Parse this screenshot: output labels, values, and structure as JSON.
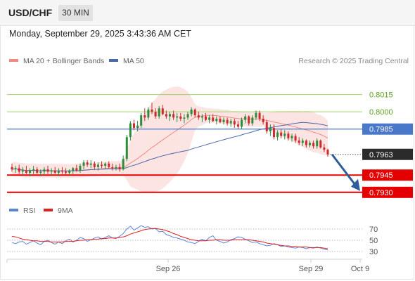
{
  "header": {
    "symbol": "USD/CHF",
    "timeframe": "30 MIN",
    "datetime": "Monday, September 29, 2025 3:43:36 AM CET"
  },
  "legend": {
    "ma20_label": "MA 20 + Bollinger Bands",
    "ma50_label": "MA 50",
    "credit": "Research © 2025 Trading Central",
    "rsi_label": "RSI",
    "rsi_ma_label": "9MA"
  },
  "colors": {
    "up": "#2e8b3a",
    "down": "#cc2b2b",
    "ma20": "#f08a80",
    "bollinger_fill": "#fce1df",
    "ma50": "#4a68a8",
    "pivot_line": "#4a78c8",
    "support_line": "#e50000",
    "resistance_line": "#9ed36a",
    "resistance_text": "#5aa020",
    "rsi": "#5b86d8",
    "rsi_ma": "#e02020",
    "arrow": "#2f5c9a",
    "last_price_tag": "#2b2b2b"
  },
  "chart_data": [
    {
      "type": "candlestick",
      "symbol": "USD/CHF",
      "timeframe": "30 MIN",
      "ylim": [
        0.7925,
        0.803
      ],
      "x_ticks": [
        "Sep 26",
        "Sep 29",
        "Oct 9"
      ],
      "candles": [
        [
          0.7952,
          0.7955,
          0.7948,
          0.795
        ],
        [
          0.795,
          0.7953,
          0.7947,
          0.7951
        ],
        [
          0.7951,
          0.7954,
          0.7946,
          0.7948
        ],
        [
          0.7948,
          0.7952,
          0.7945,
          0.7949
        ],
        [
          0.7949,
          0.7953,
          0.7946,
          0.7947
        ],
        [
          0.7947,
          0.7951,
          0.7944,
          0.7949
        ],
        [
          0.7949,
          0.7953,
          0.7946,
          0.795
        ],
        [
          0.795,
          0.7952,
          0.7946,
          0.7947
        ],
        [
          0.7947,
          0.795,
          0.7944,
          0.7948
        ],
        [
          0.7948,
          0.7952,
          0.7945,
          0.795
        ],
        [
          0.795,
          0.7953,
          0.7946,
          0.7948
        ],
        [
          0.7948,
          0.7951,
          0.7945,
          0.7949
        ],
        [
          0.7949,
          0.7952,
          0.7946,
          0.7947
        ],
        [
          0.7947,
          0.7951,
          0.7944,
          0.7949
        ],
        [
          0.7949,
          0.7952,
          0.7946,
          0.7948
        ],
        [
          0.7948,
          0.7951,
          0.7945,
          0.7947
        ],
        [
          0.7947,
          0.795,
          0.7945,
          0.7949
        ],
        [
          0.7949,
          0.7952,
          0.7946,
          0.7951
        ],
        [
          0.7951,
          0.7954,
          0.7948,
          0.7949
        ],
        [
          0.7949,
          0.7955,
          0.7947,
          0.7953
        ],
        [
          0.7953,
          0.7958,
          0.795,
          0.7956
        ],
        [
          0.7956,
          0.7958,
          0.7952,
          0.7954
        ],
        [
          0.7954,
          0.7958,
          0.7951,
          0.7955
        ],
        [
          0.7955,
          0.7957,
          0.795,
          0.7952
        ],
        [
          0.7952,
          0.7956,
          0.7949,
          0.7954
        ],
        [
          0.7954,
          0.7957,
          0.7951,
          0.7953
        ],
        [
          0.7953,
          0.7956,
          0.795,
          0.7955
        ],
        [
          0.7955,
          0.7957,
          0.7951,
          0.7952
        ],
        [
          0.7952,
          0.7955,
          0.7949,
          0.7951
        ],
        [
          0.7951,
          0.7954,
          0.7949,
          0.7952
        ],
        [
          0.7952,
          0.7955,
          0.7948,
          0.795
        ],
        [
          0.795,
          0.7962,
          0.7949,
          0.7959
        ],
        [
          0.7959,
          0.798,
          0.7957,
          0.7978
        ],
        [
          0.7978,
          0.7992,
          0.7975,
          0.799
        ],
        [
          0.799,
          0.7993,
          0.7984,
          0.7986
        ],
        [
          0.7986,
          0.7992,
          0.7983,
          0.7988
        ],
        [
          0.7988,
          0.7999,
          0.7986,
          0.7997
        ],
        [
          0.7997,
          0.8003,
          0.7992,
          0.7995
        ],
        [
          0.7995,
          0.8004,
          0.7993,
          0.8002
        ],
        [
          0.8002,
          0.8008,
          0.7998,
          0.8
        ],
        [
          0.8,
          0.8003,
          0.7994,
          0.7996
        ],
        [
          0.7996,
          0.8005,
          0.7994,
          0.8003
        ],
        [
          0.8003,
          0.8006,
          0.7997,
          0.7998
        ],
        [
          0.7998,
          0.8001,
          0.7994,
          0.7996
        ],
        [
          0.7996,
          0.8,
          0.7992,
          0.7998
        ],
        [
          0.7998,
          0.8001,
          0.7993,
          0.7995
        ],
        [
          0.7995,
          0.7999,
          0.7991,
          0.7996
        ],
        [
          0.7996,
          0.7999,
          0.7992,
          0.7994
        ],
        [
          0.7994,
          0.7998,
          0.799,
          0.7995
        ],
        [
          0.7995,
          0.8,
          0.7993,
          0.7998
        ],
        [
          0.7998,
          0.8004,
          0.7996,
          0.8002
        ],
        [
          0.8002,
          0.8003,
          0.7995,
          0.7997
        ],
        [
          0.7997,
          0.8,
          0.7993,
          0.7995
        ],
        [
          0.7995,
          0.7998,
          0.7991,
          0.7996
        ],
        [
          0.7996,
          0.7999,
          0.7992,
          0.7993
        ],
        [
          0.7993,
          0.7997,
          0.799,
          0.7995
        ],
        [
          0.7995,
          0.7998,
          0.7991,
          0.7992
        ],
        [
          0.7992,
          0.7996,
          0.7989,
          0.7994
        ],
        [
          0.7994,
          0.7996,
          0.799,
          0.7991
        ],
        [
          0.7991,
          0.7995,
          0.7989,
          0.7993
        ],
        [
          0.7993,
          0.7995,
          0.7988,
          0.799
        ],
        [
          0.799,
          0.7994,
          0.7987,
          0.7992
        ],
        [
          0.7992,
          0.7994,
          0.7986,
          0.7989
        ],
        [
          0.7989,
          0.7992,
          0.7985,
          0.7987
        ],
        [
          0.7987,
          0.7995,
          0.7985,
          0.7993
        ],
        [
          0.7993,
          0.7998,
          0.799,
          0.7996
        ],
        [
          0.7996,
          0.7997,
          0.7988,
          0.799
        ],
        [
          0.799,
          0.7997,
          0.7988,
          0.7995
        ],
        [
          0.7995,
          0.8001,
          0.7993,
          0.7999
        ],
        [
          0.7999,
          0.8001,
          0.7992,
          0.7994
        ],
        [
          0.7994,
          0.7997,
          0.7989,
          0.7991
        ],
        [
          0.7991,
          0.7993,
          0.7981,
          0.7983
        ],
        [
          0.7983,
          0.7989,
          0.7979,
          0.7986
        ],
        [
          0.7986,
          0.7989,
          0.7976,
          0.7978
        ],
        [
          0.7978,
          0.7984,
          0.7975,
          0.7982
        ],
        [
          0.7982,
          0.7985,
          0.7977,
          0.7979
        ],
        [
          0.7979,
          0.7984,
          0.7976,
          0.7981
        ],
        [
          0.7981,
          0.7983,
          0.7975,
          0.7977
        ],
        [
          0.7977,
          0.7981,
          0.7974,
          0.7979
        ],
        [
          0.7979,
          0.7981,
          0.7973,
          0.7975
        ],
        [
          0.7975,
          0.7978,
          0.7971,
          0.7973
        ],
        [
          0.7973,
          0.7977,
          0.797,
          0.7975
        ],
        [
          0.7975,
          0.7976,
          0.7969,
          0.7971
        ],
        [
          0.7971,
          0.7975,
          0.7969,
          0.7973
        ],
        [
          0.7973,
          0.7975,
          0.7968,
          0.797
        ],
        [
          0.797,
          0.7977,
          0.7968,
          0.7975
        ],
        [
          0.7975,
          0.7976,
          0.7968,
          0.7969
        ],
        [
          0.7969,
          0.7972,
          0.7965,
          0.7967
        ],
        [
          0.7967,
          0.7968,
          0.7961,
          0.7963
        ]
      ],
      "overlays": [
        "MA 20 + Bollinger Bands",
        "MA 50"
      ],
      "levels": [
        {
          "label": "0.8015",
          "value": 0.8015,
          "kind": "resistance"
        },
        {
          "label": "0.8000",
          "value": 0.8,
          "kind": "resistance"
        },
        {
          "label": "0.7985",
          "value": 0.7985,
          "kind": "pivot"
        },
        {
          "label": "0.7963",
          "value": 0.7963,
          "kind": "last"
        },
        {
          "label": "0.7945",
          "value": 0.7945,
          "kind": "support"
        },
        {
          "label": "0.7930",
          "value": 0.793,
          "kind": "support"
        }
      ],
      "forecast_arrow": {
        "from": 0.7963,
        "to": 0.793,
        "direction": "down"
      }
    },
    {
      "type": "line",
      "title": "RSI",
      "ylim": [
        25,
        80
      ],
      "y_ticks": [
        "70",
        "50",
        "30"
      ],
      "levels": [
        70,
        50,
        30
      ],
      "series": [
        {
          "name": "RSI",
          "values": [
            46,
            44,
            47,
            48,
            43,
            46,
            49,
            45,
            42,
            48,
            50,
            46,
            43,
            47,
            44,
            49,
            52,
            47,
            50,
            55,
            53,
            48,
            51,
            54,
            56,
            52,
            55,
            58,
            54,
            53,
            57,
            62,
            70,
            75,
            68,
            72,
            76,
            73,
            74,
            70,
            71,
            65,
            66,
            60,
            58,
            55,
            54,
            52,
            50,
            47,
            46,
            44,
            48,
            52,
            49,
            55,
            58,
            50,
            48,
            45,
            47,
            51,
            53,
            56,
            55,
            52,
            49,
            46,
            47,
            44,
            42,
            40,
            41,
            44,
            42,
            39,
            40,
            38,
            37,
            36,
            38,
            37,
            35,
            37,
            36,
            38,
            36,
            34,
            33
          ]
        },
        {
          "name": "9MA",
          "values": [
            57,
            56,
            54,
            52,
            51,
            50,
            49,
            49,
            48,
            48,
            48,
            47,
            47,
            47,
            47,
            48,
            48,
            48,
            49,
            50,
            50,
            51,
            51,
            52,
            52,
            53,
            53,
            54,
            54,
            54,
            55,
            56,
            58,
            61,
            63,
            65,
            67,
            69,
            70,
            71,
            71,
            70,
            69,
            67,
            65,
            62,
            60,
            57,
            55,
            53,
            51,
            50,
            49,
            49,
            49,
            50,
            50,
            51,
            51,
            50,
            50,
            50,
            51,
            51,
            51,
            51,
            51,
            50,
            49,
            48,
            47,
            45,
            44,
            43,
            42,
            41,
            40,
            40,
            39,
            39,
            38,
            38,
            38,
            37,
            37,
            37,
            37,
            36,
            35
          ]
        }
      ]
    }
  ]
}
